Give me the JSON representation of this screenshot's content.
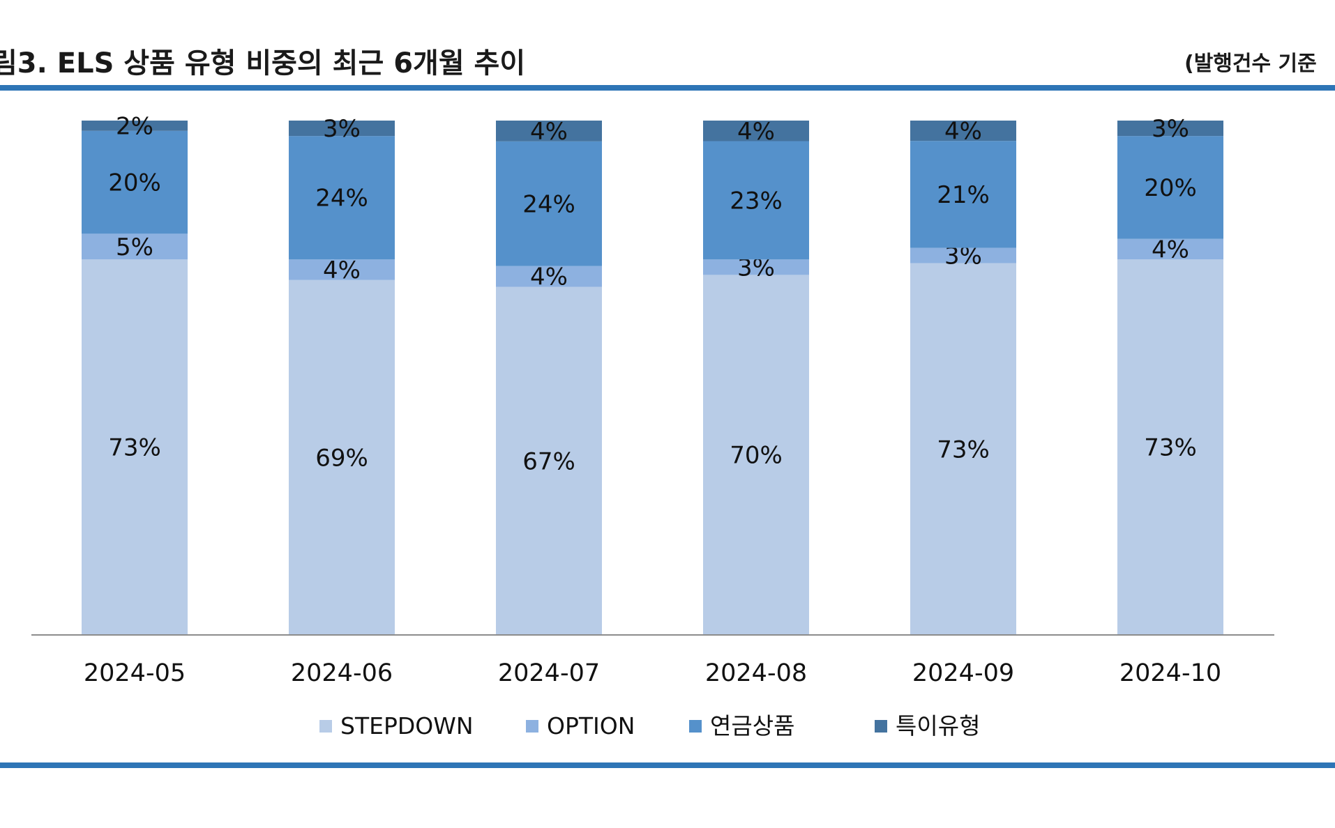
{
  "header": {
    "title": "림3. ELS 상품 유형 비중의 최근 6개월 추이",
    "subtitle": "(발행건수 기준"
  },
  "colors": {
    "accent_rule": "#2e75b6",
    "stepdown": "#b8cce7",
    "option": "#8db1e0",
    "annuity": "#5591cb",
    "special": "#44739f"
  },
  "chart_data": {
    "type": "bar",
    "stacked": true,
    "categories": [
      "2024-05",
      "2024-06",
      "2024-07",
      "2024-08",
      "2024-09",
      "2024-10"
    ],
    "series": [
      {
        "name": "STEPDOWN",
        "values": [
          73,
          69,
          67,
          70,
          73,
          73
        ],
        "color": "#b8cce7"
      },
      {
        "name": "OPTION",
        "values": [
          5,
          4,
          4,
          3,
          3,
          4
        ],
        "color": "#8db1e0"
      },
      {
        "name": "연금상품",
        "values": [
          20,
          24,
          24,
          23,
          21,
          20
        ],
        "color": "#5591cb"
      },
      {
        "name": "특이유형",
        "values": [
          2,
          3,
          4,
          4,
          4,
          3
        ],
        "color": "#44739f"
      }
    ],
    "value_format": "%",
    "ylim": [
      0,
      100
    ],
    "grid": false,
    "legend": "bottom-center"
  }
}
